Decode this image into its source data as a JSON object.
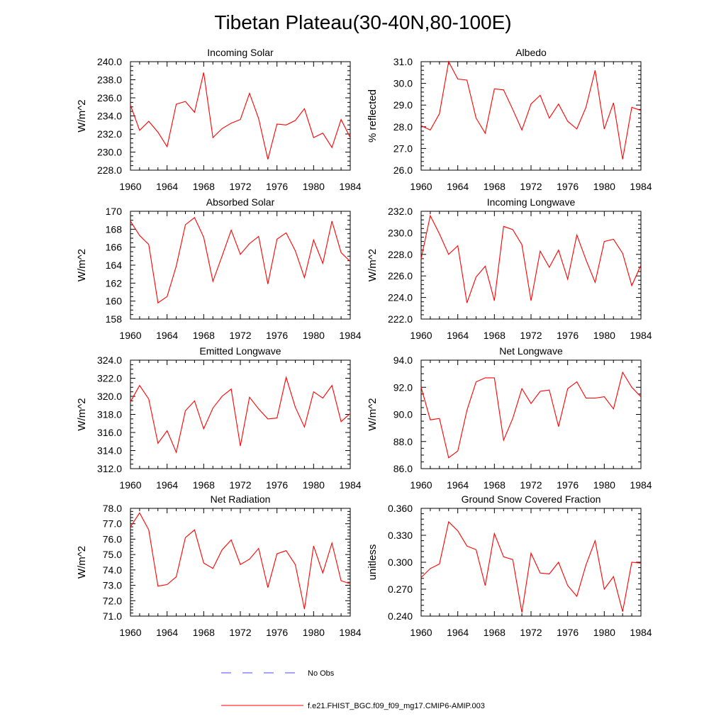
{
  "title": "Tibetan Plateau(30-40N,80-100E)",
  "series_color": "#ff0000",
  "obs_color": "#4a4aff",
  "legend": {
    "obs_label": "No Obs",
    "model_label": "f.e21.FHIST_BGC.f09_f09_mg17.CMIP6-AMIP.003"
  },
  "chart_data": [
    {
      "type": "line",
      "title": "Incoming Solar",
      "ylabel": "W/m^2",
      "xlim": [
        1960,
        1984
      ],
      "ylim": [
        228,
        240
      ],
      "x_ticks": [
        "1960",
        "1964",
        "1968",
        "1972",
        "1976",
        "1980",
        "1984"
      ],
      "y_ticks": [
        "228.0",
        "230.0",
        "232.0",
        "234.0",
        "236.0",
        "238.0",
        "240.0"
      ],
      "x": [
        1960,
        1961,
        1962,
        1963,
        1964,
        1965,
        1966,
        1967,
        1968,
        1969,
        1970,
        1971,
        1972,
        1973,
        1974,
        1975,
        1976,
        1977,
        1978,
        1979,
        1980,
        1981,
        1982,
        1983,
        1984
      ],
      "values": [
        235.2,
        232.4,
        233.4,
        232.2,
        230.6,
        235.3,
        235.6,
        234.4,
        238.8,
        231.6,
        232.6,
        233.2,
        233.6,
        236.5,
        233.7,
        229.2,
        233.1,
        233.0,
        233.5,
        234.8,
        231.6,
        232.1,
        230.5,
        233.6,
        231.6
      ]
    },
    {
      "type": "line",
      "title": "Albedo",
      "ylabel": "% reflected",
      "xlim": [
        1960,
        1984
      ],
      "ylim": [
        26,
        31
      ],
      "x_ticks": [
        "1960",
        "1964",
        "1968",
        "1972",
        "1976",
        "1980",
        "1984"
      ],
      "y_ticks": [
        "26.0",
        "27.0",
        "28.0",
        "29.0",
        "30.0",
        "31.0"
      ],
      "x": [
        1960,
        1961,
        1962,
        1963,
        1964,
        1965,
        1966,
        1967,
        1968,
        1969,
        1970,
        1971,
        1972,
        1973,
        1974,
        1975,
        1976,
        1977,
        1978,
        1979,
        1980,
        1981,
        1982,
        1983,
        1984
      ],
      "values": [
        28.05,
        27.85,
        28.6,
        31.0,
        30.2,
        30.15,
        28.4,
        27.7,
        29.75,
        29.7,
        28.8,
        27.85,
        29.05,
        29.45,
        28.4,
        29.05,
        28.25,
        27.9,
        28.9,
        30.6,
        27.9,
        29.1,
        26.5,
        28.9,
        28.75
      ]
    },
    {
      "type": "line",
      "title": "Absorbed Solar",
      "ylabel": "W/m^2",
      "xlim": [
        1960,
        1984
      ],
      "ylim": [
        158,
        170
      ],
      "x_ticks": [
        "1960",
        "1964",
        "1968",
        "1972",
        "1976",
        "1980",
        "1984"
      ],
      "y_ticks": [
        "158",
        "160",
        "162",
        "164",
        "166",
        "168",
        "170"
      ],
      "x": [
        1960,
        1961,
        1962,
        1963,
        1964,
        1965,
        1966,
        1967,
        1968,
        1969,
        1970,
        1971,
        1972,
        1973,
        1974,
        1975,
        1976,
        1977,
        1978,
        1979,
        1980,
        1981,
        1982,
        1983,
        1984
      ],
      "values": [
        168.9,
        167.3,
        166.3,
        159.8,
        160.5,
        163.9,
        168.5,
        169.3,
        167.1,
        162.2,
        165.0,
        167.9,
        165.2,
        166.4,
        167.2,
        161.9,
        166.9,
        167.6,
        165.6,
        162.6,
        166.8,
        164.2,
        168.9,
        165.4,
        164.4
      ]
    },
    {
      "type": "line",
      "title": "Incoming Longwave",
      "ylabel": "W/m^2",
      "xlim": [
        1960,
        1984
      ],
      "ylim": [
        222,
        232
      ],
      "x_ticks": [
        "1960",
        "1964",
        "1968",
        "1972",
        "1976",
        "1980",
        "1984"
      ],
      "y_ticks": [
        "222.0",
        "224.0",
        "226.0",
        "228.0",
        "230.0",
        "232.0"
      ],
      "x": [
        1960,
        1961,
        1962,
        1963,
        1964,
        1965,
        1966,
        1967,
        1968,
        1969,
        1970,
        1971,
        1972,
        1973,
        1974,
        1975,
        1976,
        1977,
        1978,
        1979,
        1980,
        1981,
        1982,
        1983,
        1984
      ],
      "values": [
        227.6,
        231.6,
        229.9,
        228.0,
        228.8,
        223.5,
        225.9,
        226.9,
        223.7,
        230.6,
        230.3,
        228.9,
        223.7,
        228.3,
        226.8,
        228.4,
        225.7,
        229.8,
        227.5,
        225.4,
        229.2,
        229.4,
        228.1,
        225.1,
        227.0
      ]
    },
    {
      "type": "line",
      "title": "Emitted Longwave",
      "ylabel": "W/m^2",
      "xlim": [
        1960,
        1984
      ],
      "ylim": [
        312,
        324
      ],
      "x_ticks": [
        "1960",
        "1964",
        "1968",
        "1972",
        "1976",
        "1980",
        "1984"
      ],
      "y_ticks": [
        "312.0",
        "314.0",
        "316.0",
        "318.0",
        "320.0",
        "322.0",
        "324.0"
      ],
      "x": [
        1960,
        1961,
        1962,
        1963,
        1964,
        1965,
        1966,
        1967,
        1968,
        1969,
        1970,
        1971,
        1972,
        1973,
        1974,
        1975,
        1976,
        1977,
        1978,
        1979,
        1980,
        1981,
        1982,
        1983,
        1984
      ],
      "values": [
        319.4,
        321.2,
        319.7,
        314.8,
        316.2,
        313.8,
        318.4,
        319.5,
        316.4,
        318.7,
        320.0,
        320.8,
        314.5,
        319.9,
        318.6,
        317.5,
        317.6,
        322.1,
        318.8,
        316.6,
        320.5,
        319.8,
        321.2,
        317.2,
        318.1
      ]
    },
    {
      "type": "line",
      "title": "Net Longwave",
      "ylabel": "W/m^2",
      "xlim": [
        1960,
        1984
      ],
      "ylim": [
        86,
        94
      ],
      "x_ticks": [
        "1960",
        "1964",
        "1968",
        "1972",
        "1976",
        "1980",
        "1984"
      ],
      "y_ticks": [
        "86.0",
        "88.0",
        "90.0",
        "92.0",
        "94.0"
      ],
      "x": [
        1960,
        1961,
        1962,
        1963,
        1964,
        1965,
        1966,
        1967,
        1968,
        1969,
        1970,
        1971,
        1972,
        1973,
        1974,
        1975,
        1976,
        1977,
        1978,
        1979,
        1980,
        1981,
        1982,
        1983,
        1984
      ],
      "values": [
        92.0,
        89.6,
        89.7,
        86.8,
        87.3,
        90.3,
        92.4,
        92.7,
        92.7,
        88.1,
        89.7,
        91.9,
        90.8,
        91.7,
        91.8,
        89.1,
        91.9,
        92.4,
        91.2,
        91.2,
        91.3,
        90.4,
        93.1,
        92.0,
        91.3
      ]
    },
    {
      "type": "line",
      "title": "Net Radiation",
      "ylabel": "W/m^2",
      "xlim": [
        1960,
        1984
      ],
      "ylim": [
        71,
        78
      ],
      "x_ticks": [
        "1960",
        "1964",
        "1968",
        "1972",
        "1976",
        "1980",
        "1984"
      ],
      "y_ticks": [
        "71.0",
        "72.0",
        "73.0",
        "74.0",
        "75.0",
        "76.0",
        "77.0",
        "78.0"
      ],
      "x": [
        1960,
        1961,
        1962,
        1963,
        1964,
        1965,
        1966,
        1967,
        1968,
        1969,
        1970,
        1971,
        1972,
        1973,
        1974,
        1975,
        1976,
        1977,
        1978,
        1979,
        1980,
        1981,
        1982,
        1983,
        1984
      ],
      "values": [
        76.8,
        77.7,
        76.6,
        72.95,
        73.05,
        73.55,
        76.1,
        76.6,
        74.45,
        74.1,
        75.3,
        75.95,
        74.35,
        74.7,
        75.4,
        72.85,
        75.05,
        75.25,
        74.35,
        71.45,
        75.55,
        73.8,
        75.75,
        73.3,
        73.1
      ]
    },
    {
      "type": "line",
      "title": "Ground Snow Covered Fraction",
      "ylabel": "unitless",
      "xlim": [
        1960,
        1984
      ],
      "ylim": [
        0.24,
        0.36
      ],
      "x_ticks": [
        "1960",
        "1964",
        "1968",
        "1972",
        "1976",
        "1980",
        "1984"
      ],
      "y_ticks": [
        "0.240",
        "0.270",
        "0.300",
        "0.330",
        "0.360"
      ],
      "x": [
        1960,
        1961,
        1962,
        1963,
        1964,
        1965,
        1966,
        1967,
        1968,
        1969,
        1970,
        1971,
        1972,
        1973,
        1974,
        1975,
        1976,
        1977,
        1978,
        1979,
        1980,
        1981,
        1982,
        1983,
        1984
      ],
      "values": [
        0.283,
        0.293,
        0.298,
        0.345,
        0.335,
        0.318,
        0.314,
        0.274,
        0.332,
        0.306,
        0.303,
        0.244,
        0.31,
        0.288,
        0.287,
        0.3,
        0.274,
        0.262,
        0.297,
        0.324,
        0.27,
        0.284,
        0.245,
        0.3,
        0.299
      ]
    }
  ]
}
